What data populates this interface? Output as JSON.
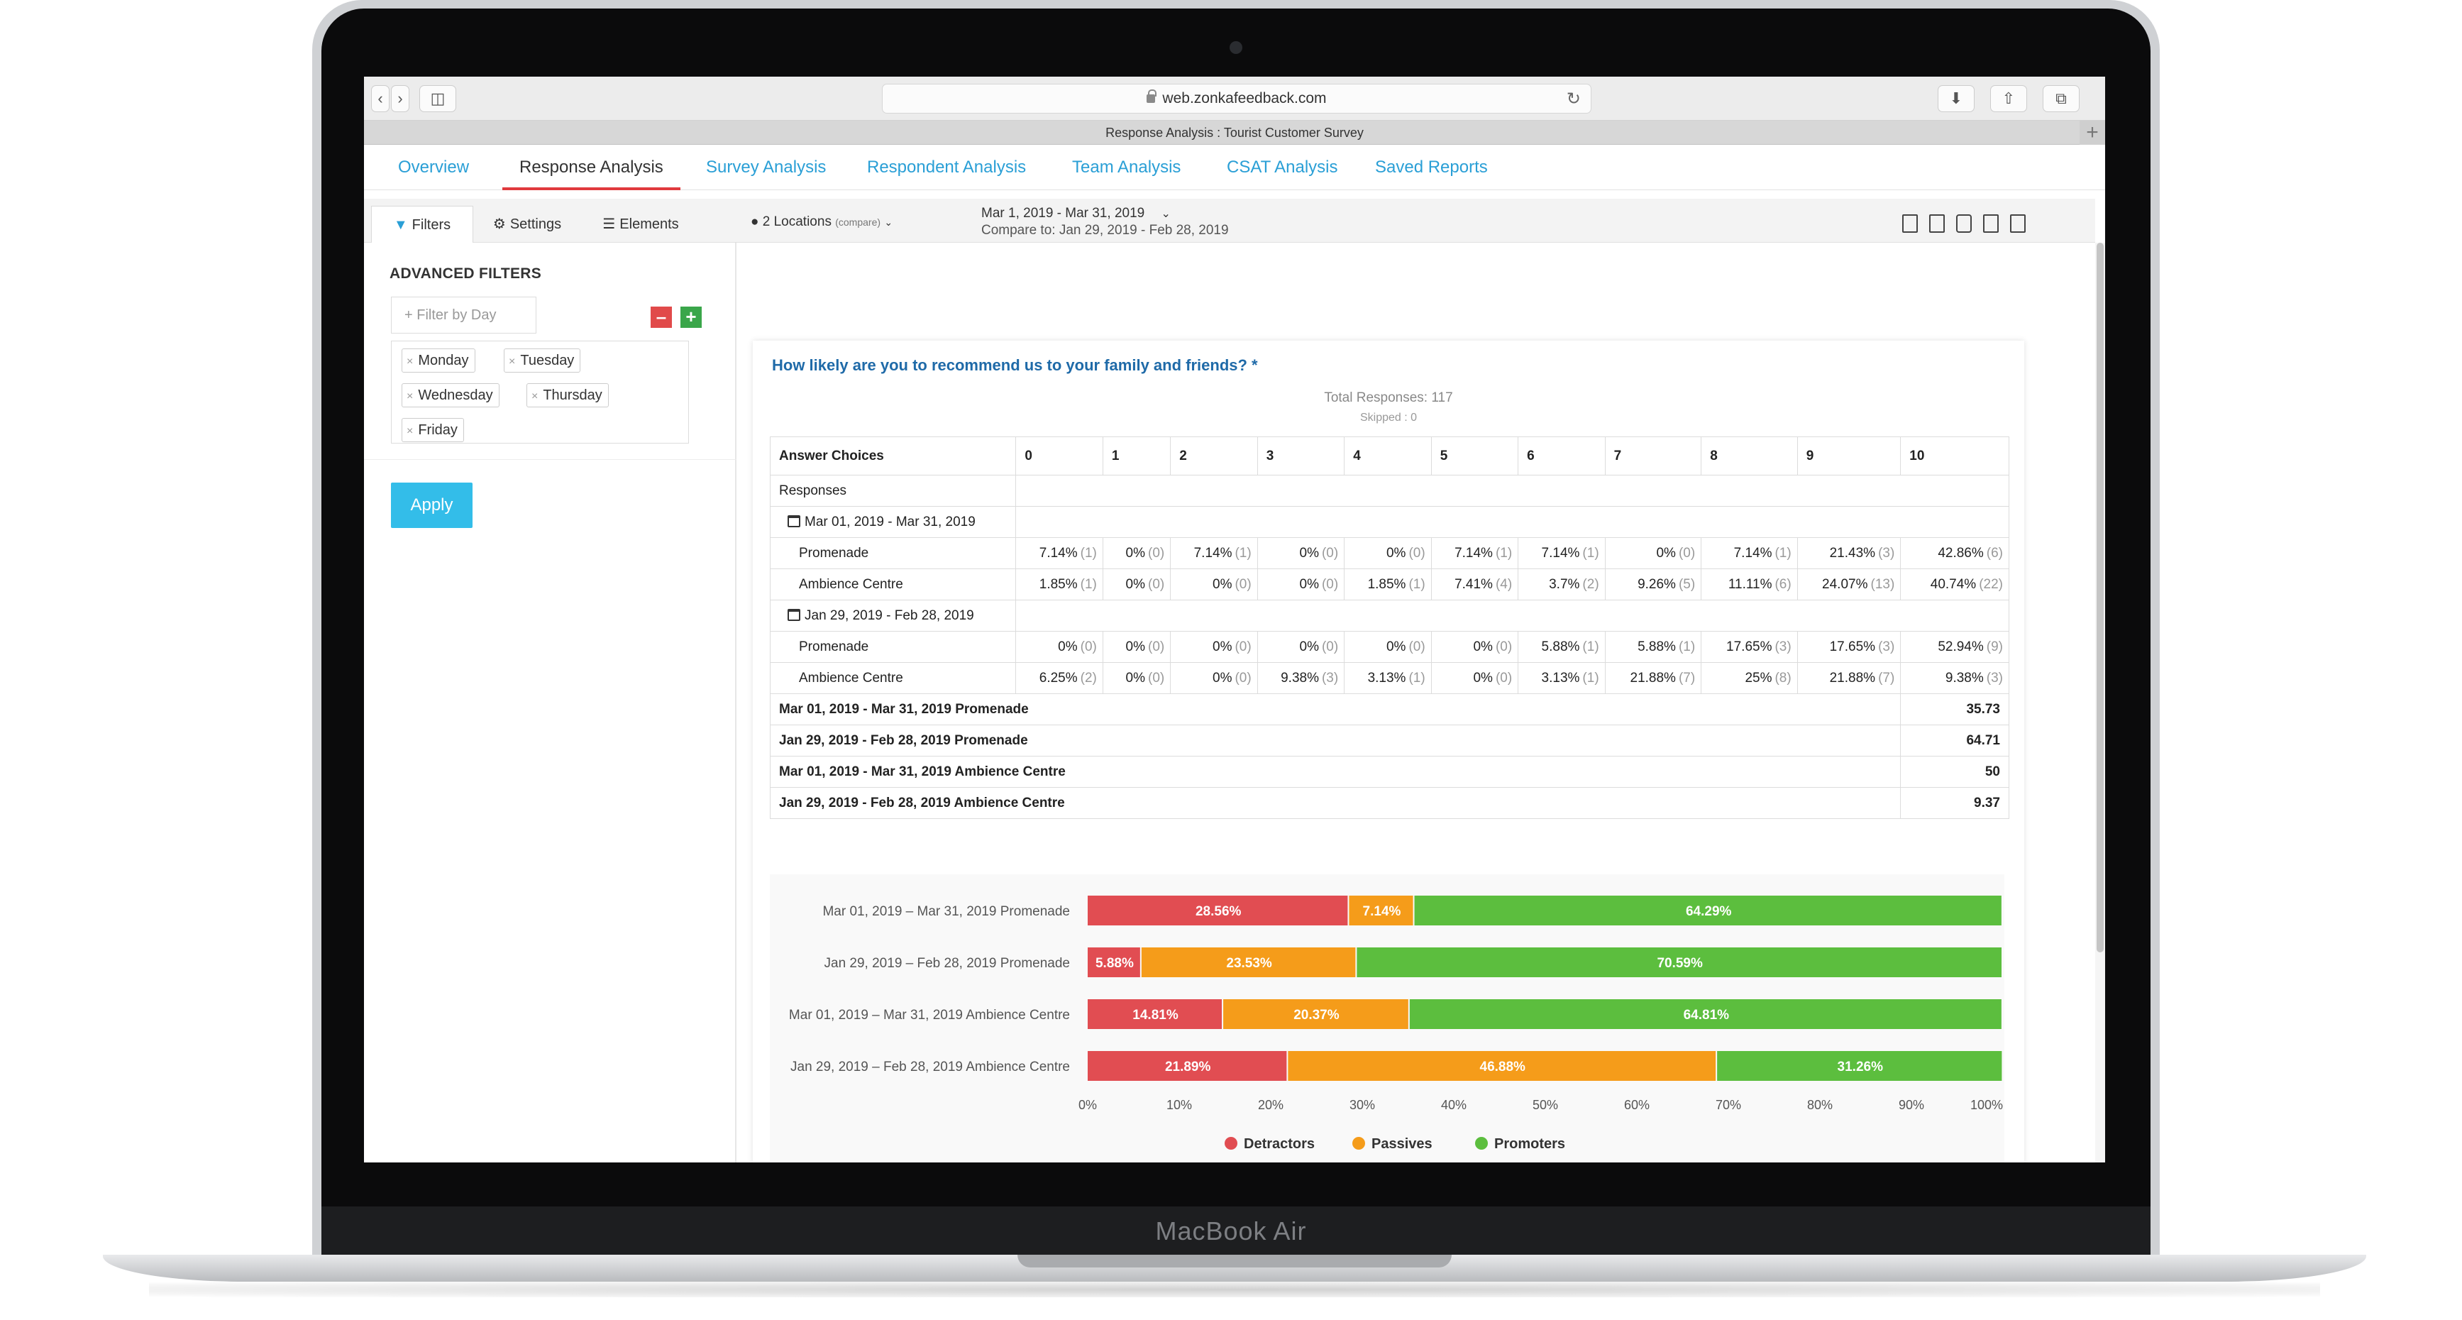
{
  "device": {
    "brand": "MacBook Air"
  },
  "browser": {
    "url": "web.zonkafeedback.com",
    "tab_title": "Response Analysis : Tourist Customer Survey"
  },
  "nav": {
    "tabs": [
      "Overview",
      "Response Analysis",
      "Survey Analysis",
      "Respondent Analysis",
      "Team Analysis",
      "CSAT Analysis",
      "Saved Reports"
    ],
    "active": "Response Analysis"
  },
  "toolbar": {
    "filters_label": "Filters",
    "settings_label": "Settings",
    "elements_label": "Elements",
    "locations_label": "2 Locations",
    "locations_sub": "(compare)",
    "date_range": "Mar 1, 2019 - Mar 31, 2019",
    "compare_range": "Compare to: Jan 29, 2019 - Feb 28, 2019"
  },
  "sidebar": {
    "title": "ADVANCED FILTERS",
    "filter_placeholder": "Filter by Day",
    "days": [
      "Monday",
      "Tuesday",
      "Wednesday",
      "Thursday",
      "Friday"
    ],
    "apply_label": "Apply"
  },
  "question": {
    "text": "How likely are you to recommend us to your family and friends? *",
    "total_responses": "Total Responses: 117",
    "skipped": "Skipped : 0"
  },
  "table": {
    "header_label": "Answer Choices",
    "columns": [
      "0",
      "1",
      "2",
      "3",
      "4",
      "5",
      "6",
      "7",
      "8",
      "9",
      "10"
    ],
    "responses_label": "Responses",
    "groups": [
      {
        "date": "Mar 01, 2019 - Mar 31, 2019",
        "rows": [
          {
            "name": "Promenade",
            "cells": [
              [
                "7.14%",
                "(1)"
              ],
              [
                "0%",
                "(0)"
              ],
              [
                "7.14%",
                "(1)"
              ],
              [
                "0%",
                "(0)"
              ],
              [
                "0%",
                "(0)"
              ],
              [
                "7.14%",
                "(1)"
              ],
              [
                "7.14%",
                "(1)"
              ],
              [
                "0%",
                "(0)"
              ],
              [
                "7.14%",
                "(1)"
              ],
              [
                "21.43%",
                "(3)"
              ],
              [
                "42.86%",
                "(6)"
              ]
            ]
          },
          {
            "name": "Ambience Centre",
            "cells": [
              [
                "1.85%",
                "(1)"
              ],
              [
                "0%",
                "(0)"
              ],
              [
                "0%",
                "(0)"
              ],
              [
                "0%",
                "(0)"
              ],
              [
                "1.85%",
                "(1)"
              ],
              [
                "7.41%",
                "(4)"
              ],
              [
                "3.7%",
                "(2)"
              ],
              [
                "9.26%",
                "(5)"
              ],
              [
                "11.11%",
                "(6)"
              ],
              [
                "24.07%",
                "(13)"
              ],
              [
                "40.74%",
                "(22)"
              ]
            ]
          }
        ]
      },
      {
        "date": "Jan 29, 2019 - Feb 28, 2019",
        "rows": [
          {
            "name": "Promenade",
            "cells": [
              [
                "0%",
                "(0)"
              ],
              [
                "0%",
                "(0)"
              ],
              [
                "0%",
                "(0)"
              ],
              [
                "0%",
                "(0)"
              ],
              [
                "0%",
                "(0)"
              ],
              [
                "0%",
                "(0)"
              ],
              [
                "5.88%",
                "(1)"
              ],
              [
                "5.88%",
                "(1)"
              ],
              [
                "17.65%",
                "(3)"
              ],
              [
                "17.65%",
                "(3)"
              ],
              [
                "52.94%",
                "(9)"
              ]
            ]
          },
          {
            "name": "Ambience Centre",
            "cells": [
              [
                "6.25%",
                "(2)"
              ],
              [
                "0%",
                "(0)"
              ],
              [
                "0%",
                "(0)"
              ],
              [
                "9.38%",
                "(3)"
              ],
              [
                "3.13%",
                "(1)"
              ],
              [
                "0%",
                "(0)"
              ],
              [
                "3.13%",
                "(1)"
              ],
              [
                "21.88%",
                "(7)"
              ],
              [
                "25%",
                "(8)"
              ],
              [
                "21.88%",
                "(7)"
              ],
              [
                "9.38%",
                "(3)"
              ]
            ]
          }
        ]
      }
    ],
    "summary": [
      {
        "label": "Mar 01, 2019 - Mar 31, 2019 Promenade",
        "value": "35.73"
      },
      {
        "label": "Jan 29, 2019 - Feb 28, 2019 Promenade",
        "value": "64.71"
      },
      {
        "label": "Mar 01, 2019 - Mar 31, 2019 Ambience Centre",
        "value": "50"
      },
      {
        "label": "Jan 29, 2019 - Feb 28, 2019 Ambience Centre",
        "value": "9.37"
      }
    ]
  },
  "colors": {
    "accent": "#2a9fd6",
    "detractors": "#e14d52",
    "passives": "#f59c1a",
    "promoters": "#5cbe3e"
  },
  "chart_data": {
    "type": "bar",
    "orientation": "horizontal",
    "stacked": true,
    "categories": [
      "Mar 01, 2019 – Mar 31, 2019 Promenade",
      "Jan 29, 2019 – Feb 28, 2019 Promenade",
      "Mar 01, 2019 – Mar 31, 2019 Ambience Centre",
      "Jan 29, 2019 – Feb 28, 2019 Ambience Centre"
    ],
    "series": [
      {
        "name": "Detractors",
        "values": [
          28.56,
          5.88,
          14.81,
          21.89
        ],
        "labels": [
          "28.56%",
          "5.88%",
          "14.81%",
          "21.89%"
        ]
      },
      {
        "name": "Passives",
        "values": [
          7.14,
          23.53,
          20.37,
          46.88
        ],
        "labels": [
          "7.14%",
          "23.53%",
          "20.37%",
          "46.88%"
        ]
      },
      {
        "name": "Promoters",
        "values": [
          64.29,
          70.59,
          64.81,
          31.26
        ],
        "labels": [
          "64.29%",
          "70.59%",
          "64.81%",
          "31.26%"
        ]
      }
    ],
    "xlim": [
      0,
      100
    ],
    "xticks": [
      "0%",
      "10%",
      "20%",
      "30%",
      "40%",
      "50%",
      "60%",
      "70%",
      "80%",
      "90%",
      "100%"
    ],
    "legend": "bottom",
    "grid": false
  }
}
